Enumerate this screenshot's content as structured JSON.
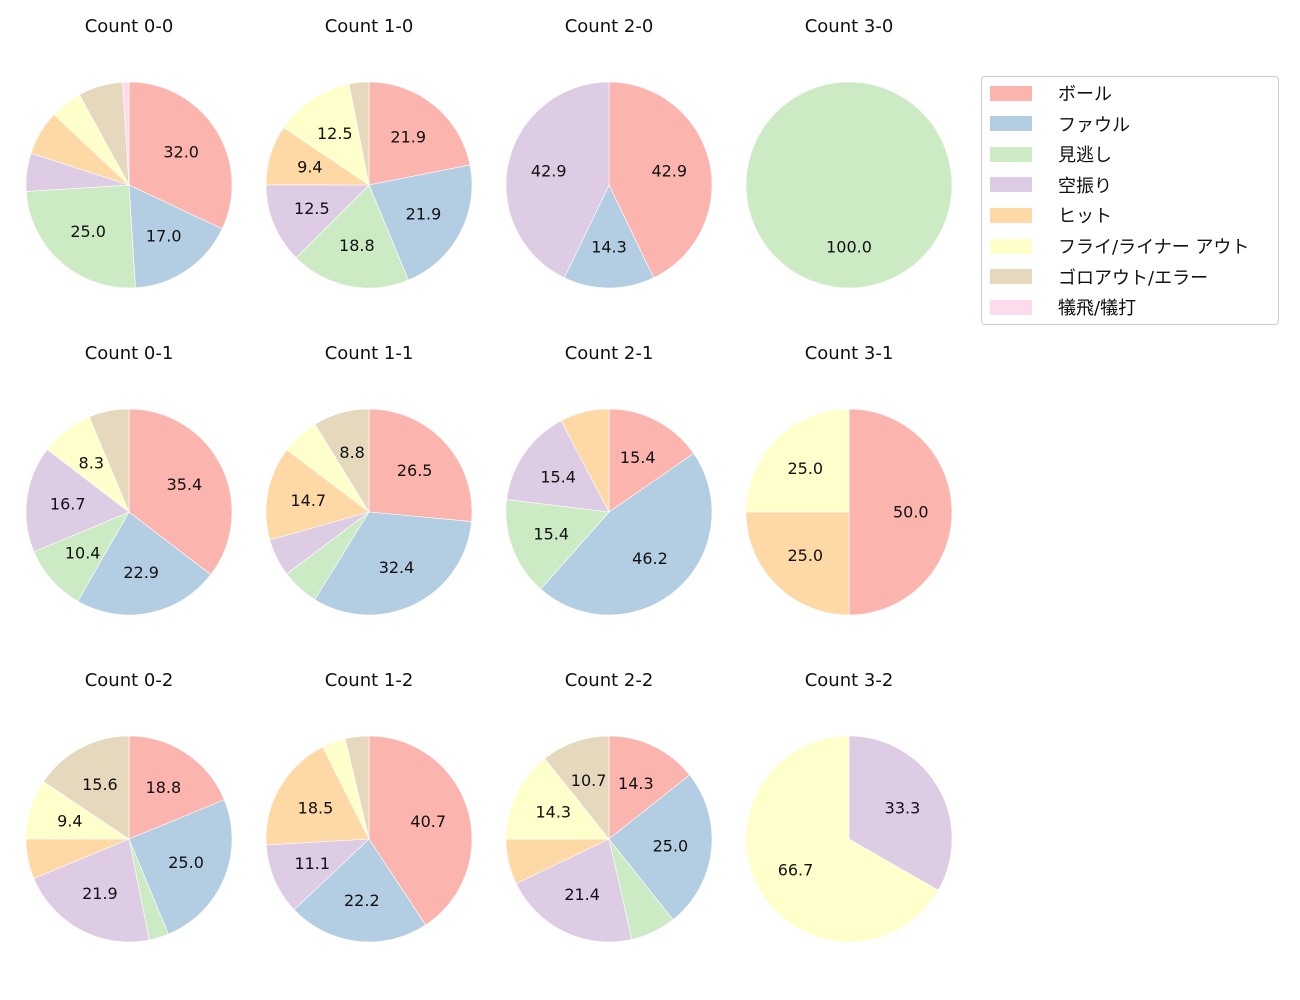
{
  "legend": {
    "items": [
      {
        "label": "ボール",
        "color": "#fbb4ae"
      },
      {
        "label": "ファウル",
        "color": "#b3cde3"
      },
      {
        "label": "見逃し",
        "color": "#ccebc5"
      },
      {
        "label": "空振り",
        "color": "#decbe4"
      },
      {
        "label": "ヒット",
        "color": "#fed9a6"
      },
      {
        "label": "フライ/ライナー アウト",
        "color": "#ffffcc"
      },
      {
        "label": "ゴロアウト/エラー",
        "color": "#e5d8bd"
      },
      {
        "label": "犠飛/犠打",
        "color": "#fddaec"
      }
    ]
  },
  "chart_data": {
    "type": "pie",
    "title": "",
    "label_format": "%.1f (labels hidden for slices < ~8%)",
    "start_angle": "12 o'clock, clockwise",
    "categories": [
      "ボール",
      "ファウル",
      "見逃し",
      "空振り",
      "ヒット",
      "フライ/ライナー アウト",
      "ゴロアウト/エラー",
      "犠飛/犠打"
    ],
    "colors": [
      "#fbb4ae",
      "#b3cde3",
      "#ccebc5",
      "#decbe4",
      "#fed9a6",
      "#ffffcc",
      "#e5d8bd",
      "#fddaec"
    ],
    "panels": [
      {
        "title": "Count 0-0",
        "row": 0,
        "col": 0,
        "values": [
          32.0,
          17.0,
          25.0,
          6.0,
          7.0,
          5.0,
          7.0,
          1.0
        ]
      },
      {
        "title": "Count 1-0",
        "row": 0,
        "col": 1,
        "values": [
          21.9,
          21.9,
          18.8,
          12.5,
          9.4,
          12.5,
          3.1,
          0
        ]
      },
      {
        "title": "Count 2-0",
        "row": 0,
        "col": 2,
        "values": [
          42.9,
          14.3,
          0,
          42.9,
          0,
          0,
          0,
          0
        ]
      },
      {
        "title": "Count 3-0",
        "row": 0,
        "col": 3,
        "values": [
          0,
          0,
          100.0,
          0,
          0,
          0,
          0,
          0
        ]
      },
      {
        "title": "Count 0-1",
        "row": 1,
        "col": 0,
        "values": [
          35.4,
          22.9,
          10.4,
          16.7,
          0,
          8.3,
          6.3,
          0
        ]
      },
      {
        "title": "Count 1-1",
        "row": 1,
        "col": 1,
        "values": [
          26.5,
          32.4,
          5.9,
          5.9,
          14.7,
          5.9,
          8.8,
          0
        ]
      },
      {
        "title": "Count 2-1",
        "row": 1,
        "col": 2,
        "values": [
          15.4,
          46.2,
          15.4,
          15.4,
          7.7,
          0,
          0,
          0
        ]
      },
      {
        "title": "Count 3-1",
        "row": 1,
        "col": 3,
        "values": [
          50.0,
          0,
          0,
          0,
          25.0,
          25.0,
          0,
          0
        ]
      },
      {
        "title": "Count 0-2",
        "row": 2,
        "col": 0,
        "values": [
          18.8,
          25.0,
          3.1,
          21.9,
          6.3,
          9.4,
          15.6,
          0
        ]
      },
      {
        "title": "Count 1-2",
        "row": 2,
        "col": 1,
        "values": [
          40.7,
          22.2,
          0,
          11.1,
          18.5,
          3.7,
          3.7,
          0
        ]
      },
      {
        "title": "Count 2-2",
        "row": 2,
        "col": 2,
        "values": [
          14.3,
          25.0,
          7.1,
          21.4,
          7.1,
          14.3,
          10.7,
          0
        ]
      },
      {
        "title": "Count 3-2",
        "row": 2,
        "col": 3,
        "values": [
          0,
          0,
          0,
          33.3,
          0,
          66.7,
          0,
          0
        ]
      }
    ]
  }
}
